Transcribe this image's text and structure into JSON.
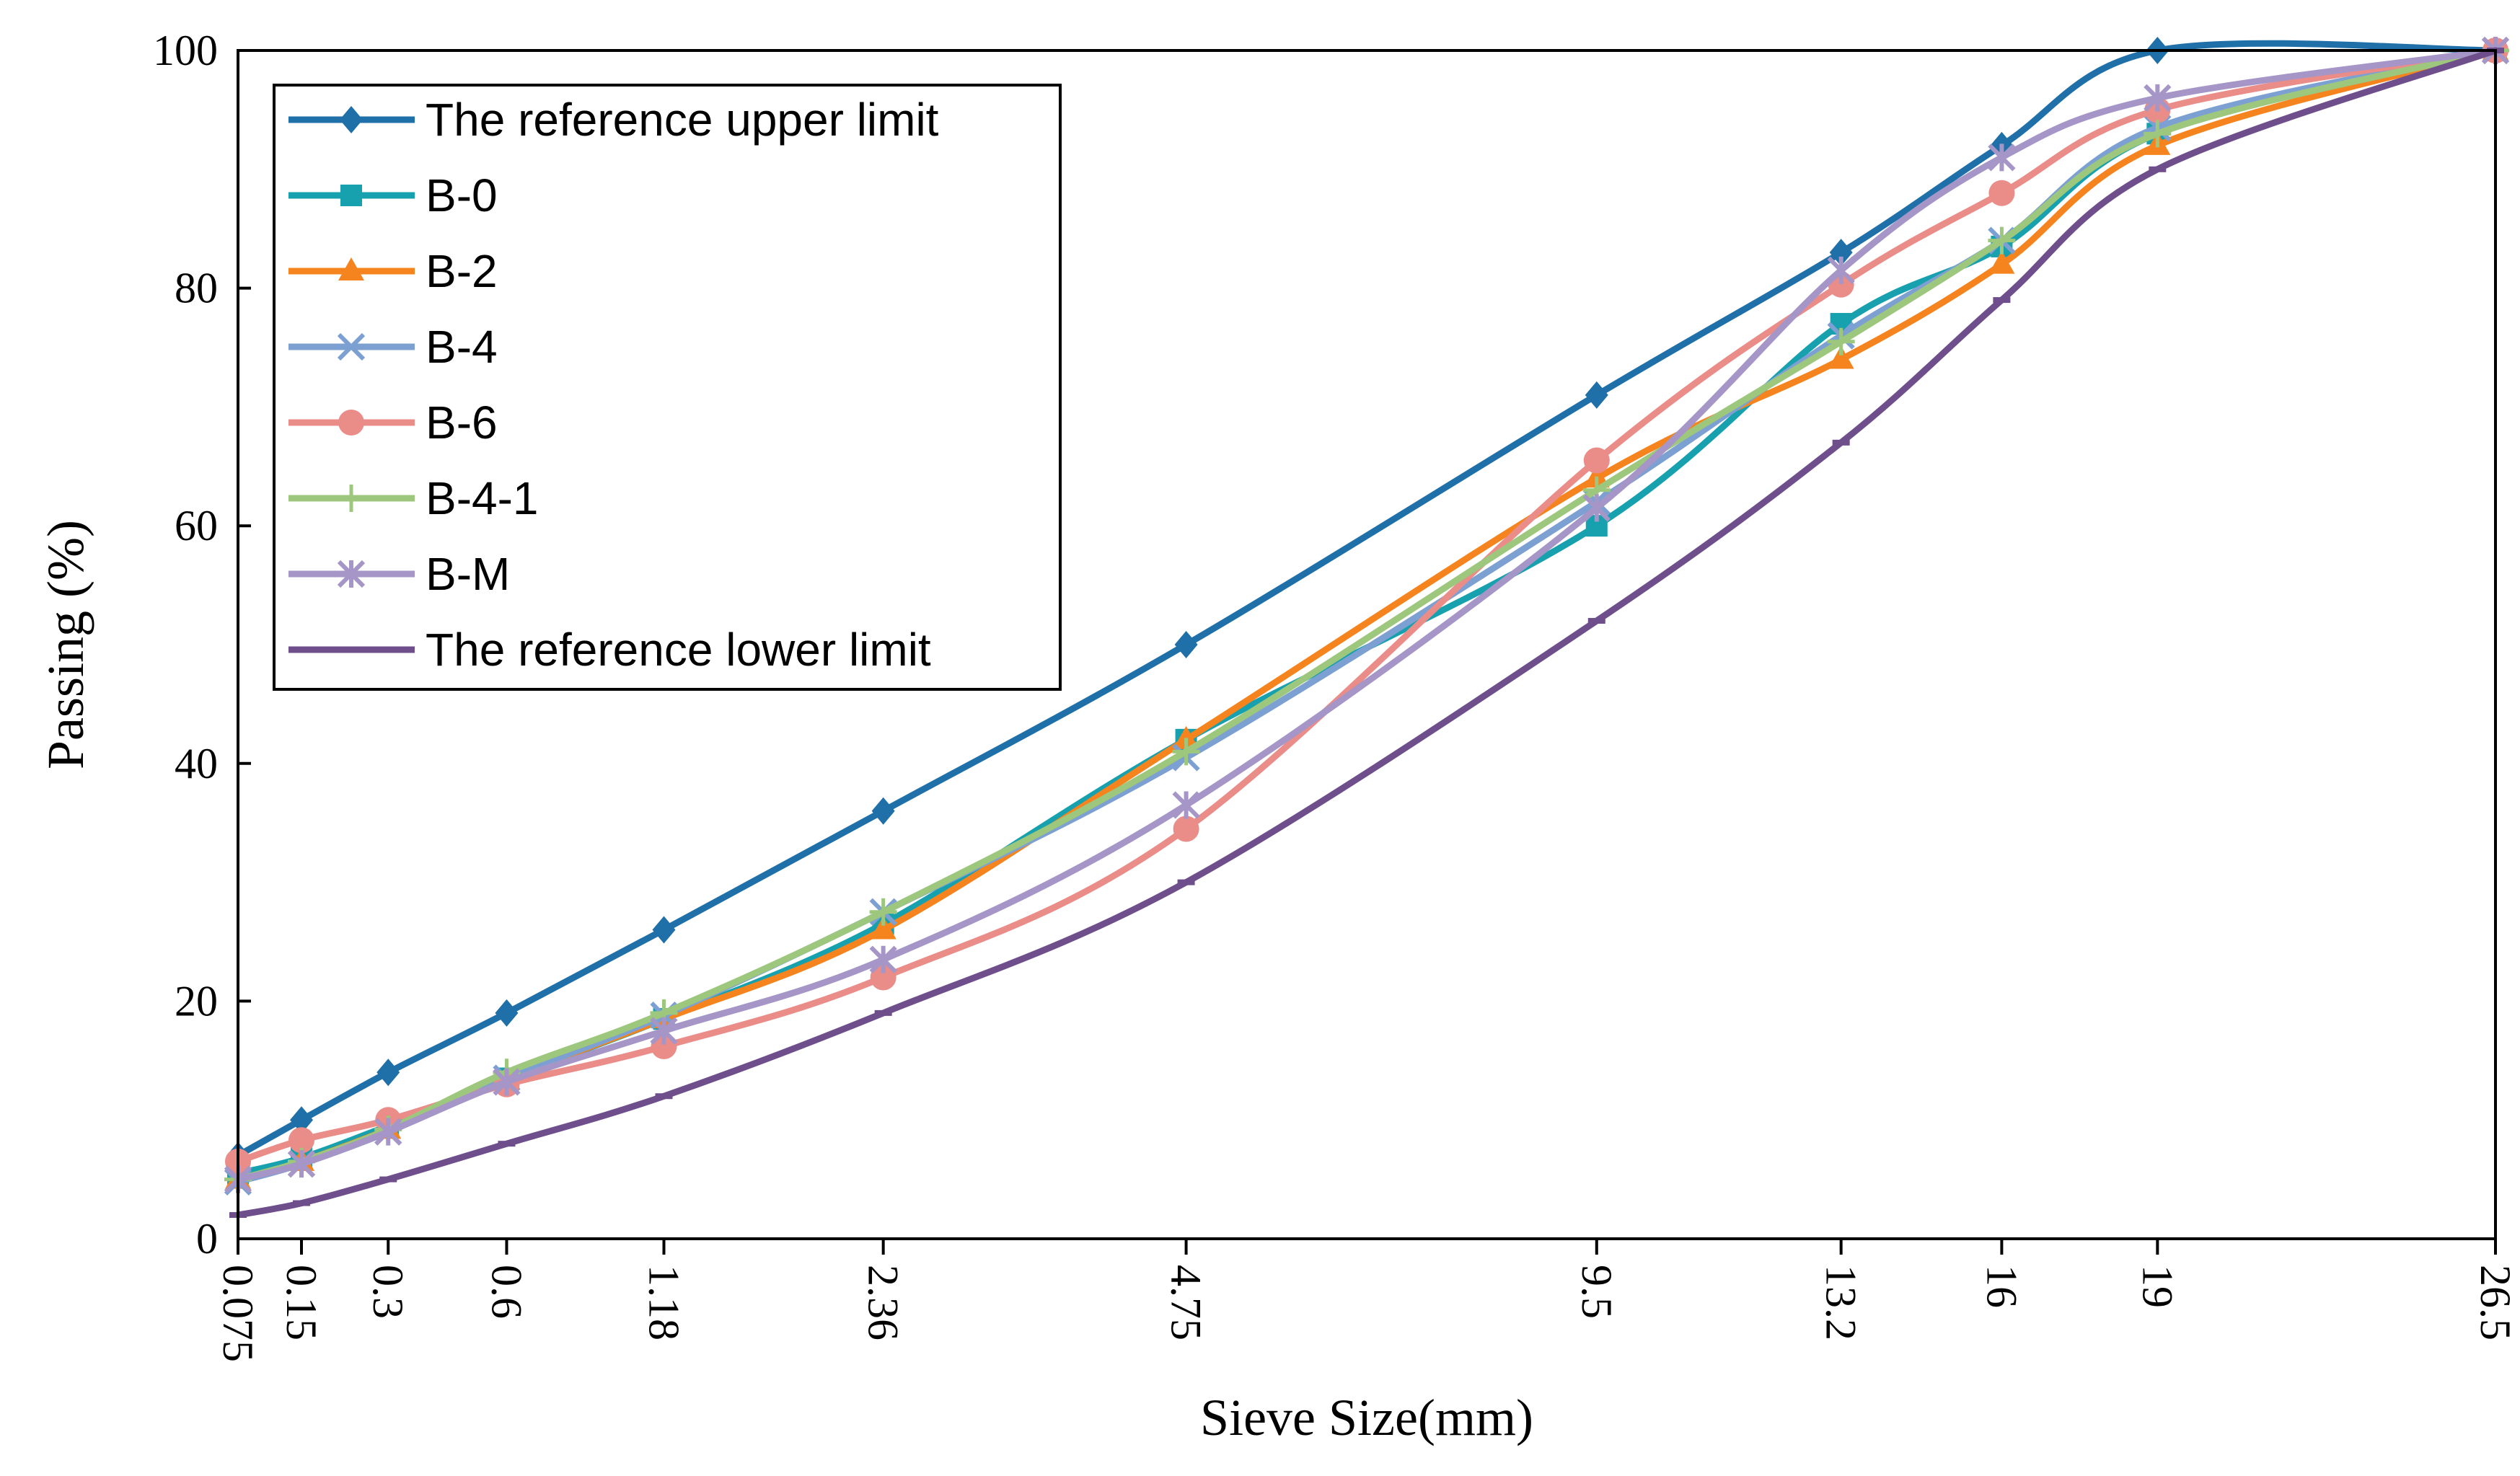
{
  "chart_data": {
    "type": "line",
    "title": "",
    "xlabel": "Sieve Size(mm)",
    "ylabel": "Passing (%)",
    "ylim": [
      0,
      100
    ],
    "yticks": [
      0,
      20,
      40,
      60,
      80,
      100
    ],
    "x_scale": "power 0.45 of sieve size",
    "categories": [
      "0.075",
      "0.15",
      "0.3",
      "0.6",
      "1.18",
      "2.36",
      "4.75",
      "9.5",
      "13.2",
      "16",
      "19",
      "26.5"
    ],
    "x": [
      0.075,
      0.15,
      0.3,
      0.6,
      1.18,
      2.36,
      4.75,
      9.5,
      13.2,
      16,
      19,
      26.5
    ],
    "legend_position": "top-left",
    "grid": false,
    "series": [
      {
        "name": "The reference upper limit",
        "color": "#1f6fa8",
        "marker": "diamond",
        "values": [
          7,
          10,
          14,
          19,
          26,
          36,
          50,
          71,
          83,
          92,
          100,
          100
        ]
      },
      {
        "name": "B-0",
        "color": "#17a0ad",
        "marker": "square",
        "values": [
          5.5,
          6.8,
          9.5,
          13.5,
          18.5,
          26.5,
          42,
          60,
          77,
          83.5,
          93,
          100
        ]
      },
      {
        "name": "B-2",
        "color": "#f5841f",
        "marker": "triangle",
        "values": [
          5,
          6.5,
          9.2,
          13.5,
          18.5,
          26,
          42,
          64,
          74,
          82,
          92,
          100
        ]
      },
      {
        "name": "B-4",
        "color": "#7da0d2",
        "marker": "x",
        "values": [
          4.8,
          6.3,
          9,
          13.5,
          18.8,
          27.5,
          40.5,
          62,
          76,
          84,
          93.5,
          100
        ]
      },
      {
        "name": "B-6",
        "color": "#ea8c88",
        "marker": "circle",
        "values": [
          6.5,
          8.3,
          10,
          13,
          16.2,
          22,
          34.5,
          65.5,
          80.3,
          88,
          95,
          100
        ]
      },
      {
        "name": "B-4-1",
        "color": "#9dc77d",
        "marker": "plus",
        "values": [
          5,
          6.5,
          9.2,
          14,
          19,
          27.5,
          41,
          63,
          75.5,
          84,
          93,
          100
        ]
      },
      {
        "name": "B-M",
        "color": "#a596c7",
        "marker": "asterisk",
        "values": [
          5,
          6.3,
          9,
          13.2,
          17.5,
          23.5,
          36.5,
          61.5,
          81.5,
          91,
          96,
          100
        ]
      },
      {
        "name": "The reference lower limit",
        "color": "#6f4e8c",
        "marker": "dash",
        "values": [
          2,
          3,
          5,
          8,
          12,
          19,
          30,
          52,
          67,
          79,
          90,
          100
        ]
      }
    ]
  }
}
